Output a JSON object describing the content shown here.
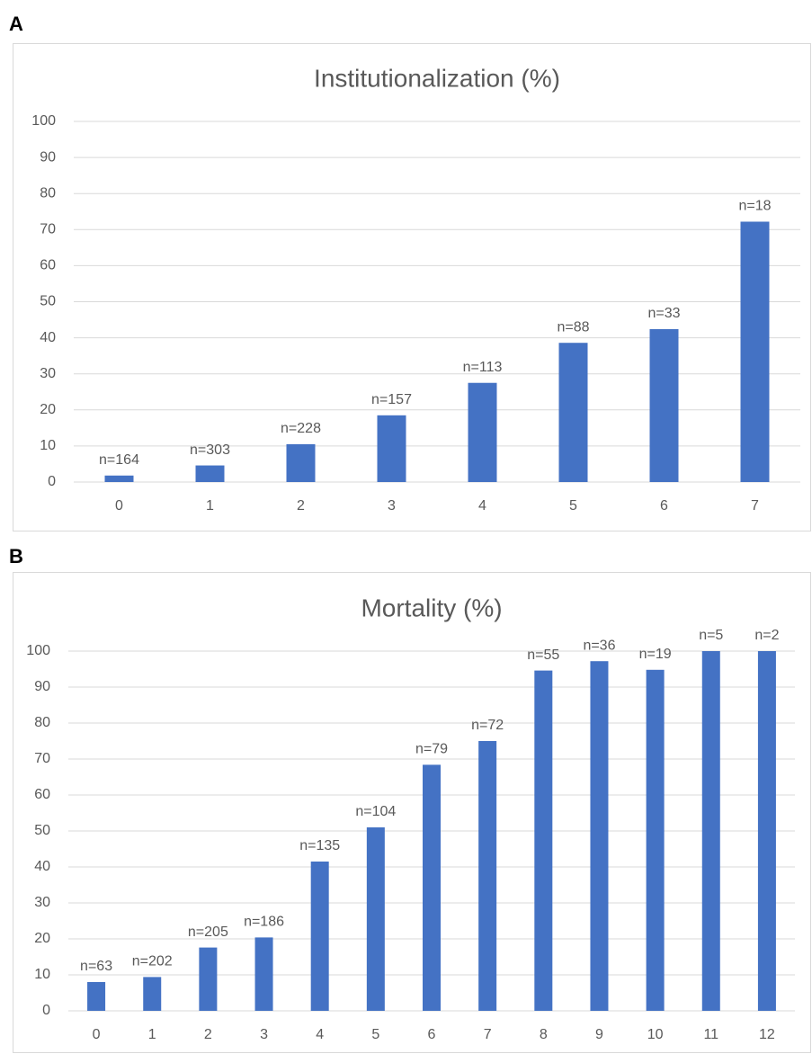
{
  "chart_data": [
    {
      "type": "bar",
      "panel_label": "A",
      "title": "Institutionalization (%)",
      "categories": [
        "0",
        "1",
        "2",
        "3",
        "4",
        "5",
        "6",
        "7"
      ],
      "values": [
        1.8,
        4.6,
        10.5,
        18.5,
        27.5,
        38.6,
        42.4,
        72.2
      ],
      "bar_labels": [
        "n=164",
        "n=303",
        "n=228",
        "n=157",
        "n=113",
        "n=88",
        "n=33",
        "n=18"
      ],
      "color": "#4472c4",
      "ylim": [
        0,
        100
      ],
      "yticks": [
        0,
        10,
        20,
        30,
        40,
        50,
        60,
        70,
        80,
        90,
        100
      ],
      "grid": true
    },
    {
      "type": "bar",
      "panel_label": "B",
      "title": "Mortality (%)",
      "categories": [
        "0",
        "1",
        "2",
        "3",
        "4",
        "5",
        "6",
        "7",
        "8",
        "9",
        "10",
        "11",
        "12"
      ],
      "values": [
        8,
        9.4,
        17.6,
        20.4,
        41.5,
        51,
        68.4,
        75,
        94.6,
        97.2,
        94.8,
        100,
        100
      ],
      "bar_labels": [
        "n=63",
        "n=202",
        "n=205",
        "n=186",
        "n=135",
        "n=104",
        "n=79",
        "n=72",
        "n=55",
        "n=36",
        "n=19",
        "n=5",
        "n=2"
      ],
      "color": "#4472c4",
      "ylim": [
        0,
        100
      ],
      "yticks": [
        0,
        10,
        20,
        30,
        40,
        50,
        60,
        70,
        80,
        90,
        100
      ],
      "grid": true
    }
  ]
}
